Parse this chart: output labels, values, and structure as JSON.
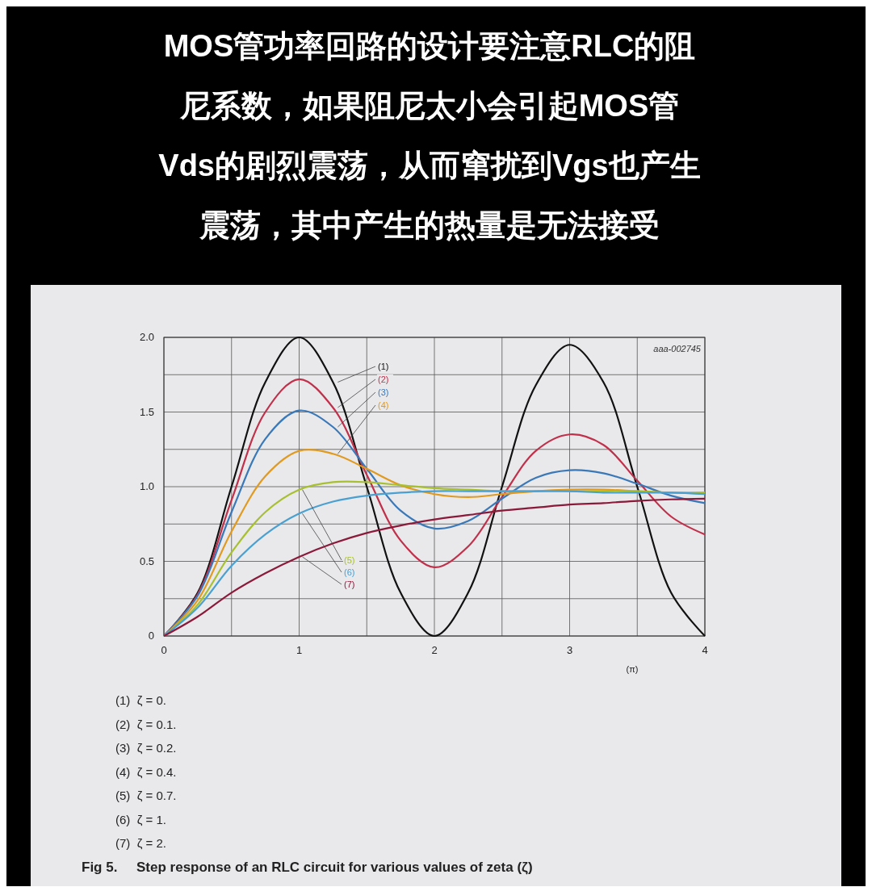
{
  "chart_data": {
    "type": "line",
    "title": "MOS管功率回路的设计要注意RLC的阻尼系数，如果阻尼太小会引起MOS管Vds的剧烈震荡，从而窜扰到Vgs也产生震荡，其中产生的热量是无法接受",
    "xlabel": "(π)",
    "x": [
      0,
      0.25,
      0.5,
      0.75,
      1,
      1.25,
      1.5,
      1.75,
      2,
      2.25,
      2.5,
      2.75,
      3,
      3.25,
      3.5,
      3.75,
      4
    ],
    "series": [
      {
        "name": "(1)",
        "color": "#111111",
        "values": [
          0,
          0.29,
          1,
          1.7,
          2,
          1.7,
          1,
          0.29,
          0,
          0.29,
          1,
          1.68,
          1.95,
          1.7,
          1,
          0.29,
          0
        ]
      },
      {
        "name": "(2)",
        "color": "#c0304a",
        "values": [
          0,
          0.28,
          0.91,
          1.5,
          1.72,
          1.53,
          1.08,
          0.64,
          0.46,
          0.6,
          0.93,
          1.24,
          1.35,
          1.28,
          1.04,
          0.8,
          0.68
        ]
      },
      {
        "name": "(3)",
        "color": "#3a78b8",
        "values": [
          0,
          0.27,
          0.83,
          1.32,
          1.51,
          1.4,
          1.12,
          0.84,
          0.72,
          0.77,
          0.92,
          1.06,
          1.11,
          1.09,
          1.02,
          0.94,
          0.89
        ]
      },
      {
        "name": "(4)",
        "color": "#e09a20",
        "values": [
          0,
          0.24,
          0.7,
          1.07,
          1.24,
          1.22,
          1.12,
          1.01,
          0.95,
          0.93,
          0.95,
          0.97,
          0.98,
          0.98,
          0.97,
          0.96,
          0.96
        ]
      },
      {
        "name": "(5)",
        "color": "#a8c030",
        "values": [
          0,
          0.21,
          0.56,
          0.83,
          0.98,
          1.03,
          1.03,
          1.01,
          0.99,
          0.98,
          0.97,
          0.97,
          0.97,
          0.97,
          0.97,
          0.96,
          0.96
        ]
      },
      {
        "name": "(6)",
        "color": "#4aa0d0",
        "values": [
          0,
          0.19,
          0.47,
          0.68,
          0.82,
          0.9,
          0.94,
          0.96,
          0.97,
          0.97,
          0.97,
          0.97,
          0.97,
          0.96,
          0.96,
          0.96,
          0.95
        ]
      },
      {
        "name": "(7)",
        "color": "#8b1a3a",
        "values": [
          0,
          0.13,
          0.29,
          0.42,
          0.53,
          0.62,
          0.69,
          0.74,
          0.78,
          0.81,
          0.84,
          0.86,
          0.88,
          0.89,
          0.905,
          0.915,
          0.92
        ]
      }
    ],
    "xlim": [
      0,
      4
    ],
    "xticks": [
      0,
      1,
      2,
      3,
      4
    ],
    "ylim": [
      0,
      2
    ],
    "yticks": [
      0,
      0.5,
      {
        "value": 1,
        "label": "1.0"
      },
      1.5,
      {
        "value": 2,
        "label": "2.0"
      }
    ],
    "grid": true,
    "marker": "none",
    "line_style": "solid",
    "annotations": [
      "aaa-002745",
      "(1)  ζ = 0.",
      "(2)  ζ = 0.1.",
      "(3)  ζ = 0.2.",
      "(4)  ζ = 0.4.",
      "(5)  ζ = 0.7.",
      "(6)  ζ = 1.",
      "(7)  ζ = 2.",
      "Fig 5.     Step response of an RLC circuit for various values of zeta (ζ)"
    ]
  }
}
